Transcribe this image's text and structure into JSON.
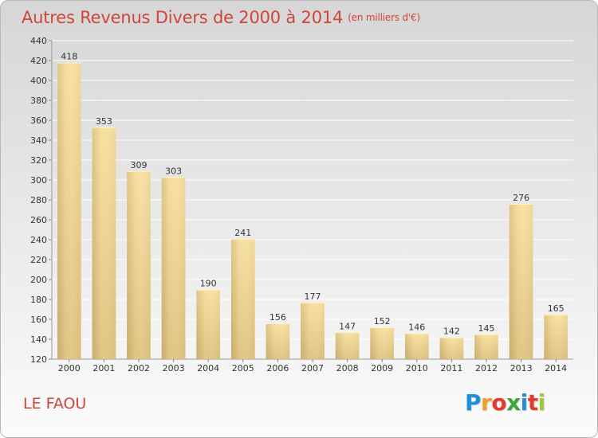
{
  "header": {
    "title": "Autres Revenus Divers de 2000 à 2014",
    "unit": "(en milliers d'€)"
  },
  "footer": {
    "place": "LE FAOU",
    "logo_letters": [
      "P",
      "r",
      "o",
      "x",
      "i",
      "t",
      "i"
    ],
    "logo_colors": [
      "#1f8fd6",
      "#f0a020",
      "#e23a2c",
      "#38a83a",
      "#1f8fd6",
      "#e23a2c",
      "#9acd32"
    ]
  },
  "colors": {
    "bar_light": "#f9e09a",
    "bar_dark": "#c8ac6a",
    "title": "#d0453a",
    "grid": "#ffffff"
  },
  "chart_data": {
    "type": "bar",
    "title": "Autres Revenus Divers de 2000 à 2014",
    "subtitle": "(en milliers d'€)",
    "categories": [
      "2000",
      "2001",
      "2002",
      "2003",
      "2004",
      "2005",
      "2006",
      "2007",
      "2008",
      "2009",
      "2010",
      "2011",
      "2012",
      "2013",
      "2014"
    ],
    "values": [
      418,
      353,
      309,
      303,
      190,
      241,
      156,
      177,
      147,
      152,
      146,
      142,
      145,
      276,
      165
    ],
    "ylim": [
      120,
      440
    ],
    "yticks": [
      120,
      140,
      160,
      180,
      200,
      220,
      240,
      260,
      280,
      300,
      320,
      340,
      360,
      380,
      400,
      420,
      440
    ],
    "grid": true,
    "xlabel": "",
    "ylabel": ""
  }
}
